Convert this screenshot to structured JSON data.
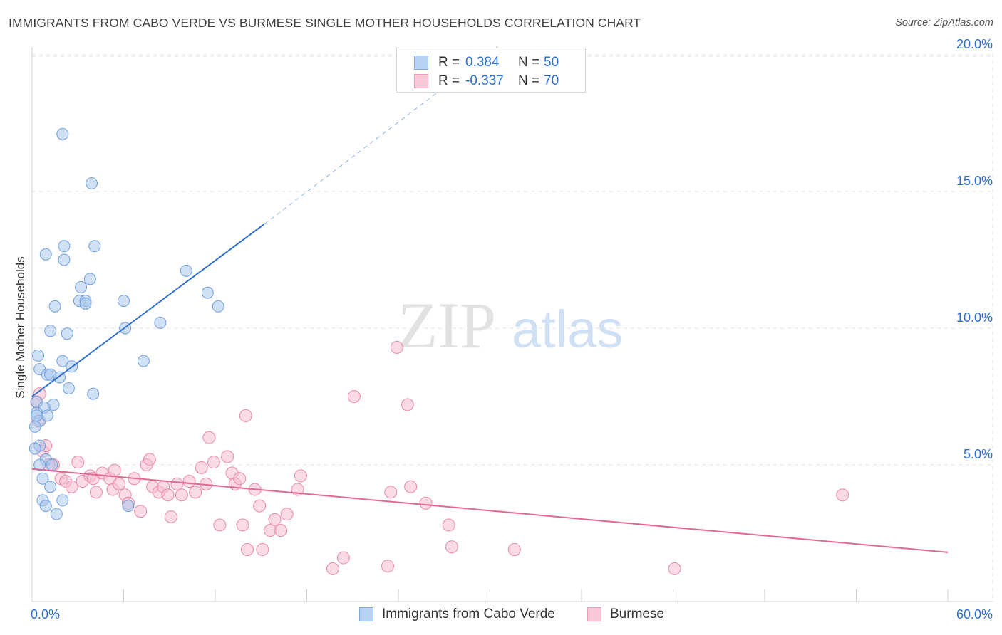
{
  "title": "IMMIGRANTS FROM CABO VERDE VS BURMESE SINGLE MOTHER HOUSEHOLDS CORRELATION CHART",
  "source": "Source: ZipAtlas.com",
  "watermark": {
    "zip": "ZIP",
    "atlas": "atlas"
  },
  "colors": {
    "blue_fill": "#a9c8ef",
    "blue_stroke": "#6f9fdc",
    "blue_line": "#2f6fd0",
    "pink_fill": "#f6bccd",
    "pink_stroke": "#e88aa8",
    "pink_line": "#e06896",
    "axis_label": "#2a6fd6",
    "grid": "#e3e3e3"
  },
  "legend": {
    "rows": [
      {
        "r_label": "R =",
        "r_value": "0.384",
        "n_label": "N =",
        "n_value": "50"
      },
      {
        "r_label": "R =",
        "r_value": "-0.337",
        "n_label": "N =",
        "n_value": "70"
      }
    ]
  },
  "bottom_legend": {
    "series1": "Immigrants from Cabo Verde",
    "series2": "Burmese"
  },
  "chart_data": {
    "type": "scatter",
    "title": "IMMIGRANTS FROM CABO VERDE VS BURMESE SINGLE MOTHER HOUSEHOLDS CORRELATION CHART",
    "xlabel": "",
    "ylabel": "Single Mother Households",
    "xlim": [
      0,
      60
    ],
    "ylim": [
      0,
      20.5
    ],
    "x_tick_labels": [
      "0.0%",
      "60.0%"
    ],
    "y_ticks": [
      5,
      10,
      15,
      20
    ],
    "y_tick_labels": [
      "5.0%",
      "10.0%",
      "15.0%",
      "20.0%"
    ],
    "grid": true,
    "legend_position": "top-center",
    "series": [
      {
        "name": "Immigrants from Cabo Verde",
        "R": 0.384,
        "N": 50,
        "trend": {
          "x0": 0,
          "y0": 7.5,
          "x1": 15.2,
          "y1": 13.8,
          "dashed_to_x": 30.5,
          "dashed_to_y": 20.3
        },
        "points": [
          [
            2.0,
            17.1
          ],
          [
            3.9,
            15.3
          ],
          [
            0.9,
            12.7
          ],
          [
            2.1,
            13.0
          ],
          [
            4.1,
            13.0
          ],
          [
            2.1,
            12.5
          ],
          [
            3.8,
            11.8
          ],
          [
            3.2,
            11.5
          ],
          [
            3.1,
            11.0
          ],
          [
            3.5,
            11.0
          ],
          [
            3.5,
            10.9
          ],
          [
            6.0,
            11.0
          ],
          [
            1.5,
            10.8
          ],
          [
            1.2,
            9.9
          ],
          [
            2.3,
            9.8
          ],
          [
            6.1,
            10.0
          ],
          [
            8.4,
            10.2
          ],
          [
            10.1,
            12.1
          ],
          [
            11.5,
            11.3
          ],
          [
            12.2,
            10.8
          ],
          [
            0.4,
            9.0
          ],
          [
            0.5,
            8.5
          ],
          [
            2.0,
            8.8
          ],
          [
            2.6,
            8.6
          ],
          [
            1.0,
            8.3
          ],
          [
            1.8,
            8.2
          ],
          [
            7.3,
            8.8
          ],
          [
            1.2,
            8.3
          ],
          [
            2.4,
            7.8
          ],
          [
            4.0,
            7.6
          ],
          [
            0.3,
            7.3
          ],
          [
            1.4,
            7.2
          ],
          [
            0.8,
            7.1
          ],
          [
            0.3,
            6.9
          ],
          [
            0.5,
            6.6
          ],
          [
            1.0,
            6.8
          ],
          [
            0.2,
            6.4
          ],
          [
            0.5,
            5.7
          ],
          [
            0.9,
            5.2
          ],
          [
            1.3,
            5.0
          ],
          [
            0.7,
            4.5
          ],
          [
            1.2,
            4.2
          ],
          [
            0.7,
            3.7
          ],
          [
            0.9,
            3.5
          ],
          [
            2.0,
            3.7
          ],
          [
            1.6,
            3.2
          ],
          [
            6.3,
            3.5
          ],
          [
            0.2,
            5.6
          ],
          [
            0.5,
            5.0
          ],
          [
            0.3,
            6.8
          ]
        ]
      },
      {
        "name": "Burmese",
        "R": -0.337,
        "N": 70,
        "trend": {
          "x0": 0,
          "y0": 4.85,
          "x1": 60,
          "y1": 1.8
        },
        "points": [
          [
            0.5,
            7.6
          ],
          [
            0.4,
            6.6
          ],
          [
            0.7,
            5.5
          ],
          [
            0.9,
            5.7
          ],
          [
            1.4,
            5.0
          ],
          [
            1.9,
            4.5
          ],
          [
            2.2,
            4.4
          ],
          [
            2.6,
            4.2
          ],
          [
            3.0,
            5.1
          ],
          [
            3.3,
            4.4
          ],
          [
            3.8,
            4.6
          ],
          [
            4.0,
            4.5
          ],
          [
            4.2,
            4.0
          ],
          [
            4.6,
            4.7
          ],
          [
            5.1,
            4.5
          ],
          [
            5.3,
            4.1
          ],
          [
            5.4,
            4.8
          ],
          [
            5.7,
            4.3
          ],
          [
            6.1,
            3.9
          ],
          [
            6.3,
            3.6
          ],
          [
            6.7,
            4.5
          ],
          [
            7.1,
            3.3
          ],
          [
            7.5,
            5.0
          ],
          [
            7.7,
            5.2
          ],
          [
            7.9,
            4.2
          ],
          [
            8.3,
            4.0
          ],
          [
            8.6,
            4.2
          ],
          [
            8.9,
            3.9
          ],
          [
            9.1,
            3.1
          ],
          [
            9.5,
            4.3
          ],
          [
            9.8,
            3.9
          ],
          [
            10.3,
            4.4
          ],
          [
            10.7,
            4.0
          ],
          [
            11.1,
            4.9
          ],
          [
            11.4,
            4.3
          ],
          [
            11.6,
            6.0
          ],
          [
            11.9,
            5.1
          ],
          [
            12.3,
            2.8
          ],
          [
            12.8,
            5.3
          ],
          [
            13.1,
            4.7
          ],
          [
            13.3,
            4.3
          ],
          [
            13.6,
            4.5
          ],
          [
            13.8,
            2.8
          ],
          [
            14.0,
            6.8
          ],
          [
            14.1,
            1.9
          ],
          [
            14.6,
            4.1
          ],
          [
            14.9,
            3.5
          ],
          [
            15.1,
            1.9
          ],
          [
            15.6,
            2.6
          ],
          [
            15.9,
            3.0
          ],
          [
            16.3,
            2.6
          ],
          [
            16.7,
            3.2
          ],
          [
            17.4,
            4.1
          ],
          [
            17.6,
            4.6
          ],
          [
            19.7,
            1.2
          ],
          [
            20.4,
            1.6
          ],
          [
            21.1,
            7.5
          ],
          [
            23.3,
            1.3
          ],
          [
            23.5,
            4.0
          ],
          [
            23.9,
            9.3
          ],
          [
            24.6,
            7.2
          ],
          [
            24.8,
            4.2
          ],
          [
            25.8,
            3.6
          ],
          [
            27.3,
            2.8
          ],
          [
            27.5,
            2.0
          ],
          [
            31.6,
            1.9
          ],
          [
            42.1,
            1.2
          ],
          [
            53.1,
            3.9
          ],
          [
            0.3,
            7.3
          ],
          [
            1.1,
            5.0
          ]
        ]
      }
    ]
  }
}
